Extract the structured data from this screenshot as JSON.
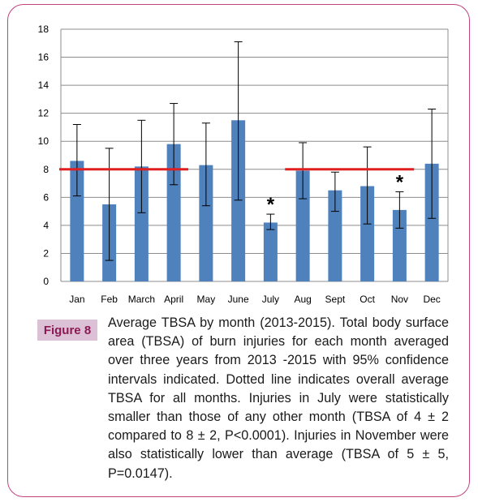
{
  "chart_data": {
    "type": "bar",
    "categories": [
      "Jan",
      "Feb",
      "March",
      "April",
      "May",
      "June",
      "July",
      "Aug",
      "Sept",
      "Oct",
      "Nov",
      "Dec"
    ],
    "values": [
      8.6,
      5.5,
      8.2,
      9.8,
      8.3,
      11.5,
      4.2,
      7.9,
      6.5,
      6.8,
      5.1,
      8.4
    ],
    "error_low": [
      6.1,
      1.5,
      4.9,
      6.9,
      5.4,
      5.8,
      3.7,
      5.9,
      5.0,
      4.1,
      3.8,
      4.5
    ],
    "error_high": [
      11.2,
      9.5,
      11.5,
      12.7,
      11.3,
      17.1,
      4.8,
      9.9,
      7.8,
      9.6,
      6.4,
      12.3
    ],
    "ylim": [
      0,
      18
    ],
    "yticks": [
      "0",
      "2",
      "4",
      "6",
      "8",
      "10",
      "12",
      "14",
      "16",
      "18"
    ],
    "grid": true,
    "average_lines": [
      {
        "from": "Jan",
        "to": "April",
        "value": 8,
        "color": "#e02020"
      },
      {
        "from": "Aug",
        "to": "Nov",
        "value": 8,
        "color": "#e02020"
      }
    ],
    "significance": [
      {
        "category": "July",
        "label": "*"
      },
      {
        "category": "Nov",
        "label": "*"
      }
    ],
    "bar_color": "#4f81bd",
    "title": "",
    "xlabel": "",
    "ylabel": ""
  },
  "figure": {
    "label": "Figure 8",
    "caption": "Average TBSA by month (2013-2015). Total body surface area (TBSA) of burn injuries for each month averaged over three years from 2013 -2015 with 95% confidence intervals indicated. Dotted line indicates overall average TBSA for all months. Injuries in July were statistically smaller than those of any other month (TBSA of 4 ± 2 compared to 8 ± 2, P<0.0001). Injuries in November were also statistically lower than average (TBSA of 5 ± 5, P=0.0147)."
  },
  "colors": {
    "border": "#c1437e",
    "badge_bg": "#dcc0d6",
    "badge_text": "#8a1a55"
  }
}
